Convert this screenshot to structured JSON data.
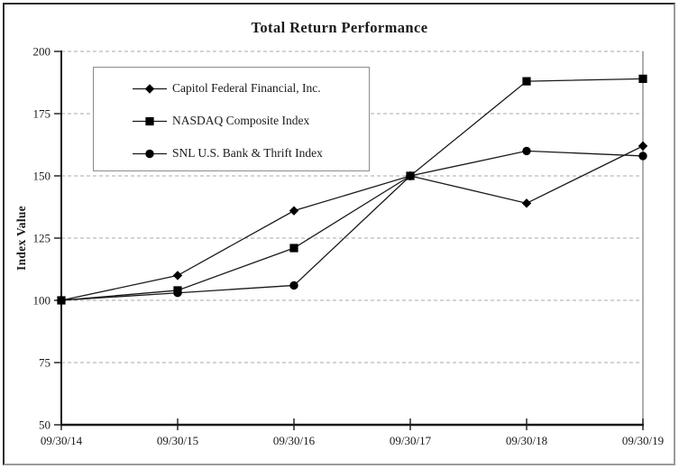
{
  "chart_data": {
    "type": "line",
    "title": "Total Return Performance",
    "ylabel": "Index Value",
    "xlabel": "",
    "categories": [
      "09/30/14",
      "09/30/15",
      "09/30/16",
      "09/30/17",
      "09/30/18",
      "09/30/19"
    ],
    "y_ticks": [
      50,
      75,
      100,
      125,
      150,
      175,
      200
    ],
    "ylim": [
      50,
      200
    ],
    "grid": "horizontal-dashed",
    "legend_position": "inside-top-left",
    "series": [
      {
        "name": "Capitol Federal Financial, Inc.",
        "marker": "diamond",
        "color": "#000000",
        "values": [
          100,
          110,
          136,
          150,
          139,
          162
        ]
      },
      {
        "name": "NASDAQ Composite Index",
        "marker": "square",
        "color": "#000000",
        "values": [
          100,
          104,
          121,
          150,
          188,
          189
        ]
      },
      {
        "name": "SNL U.S. Bank & Thrift Index",
        "marker": "circle",
        "color": "#000000",
        "values": [
          100,
          103,
          106,
          150,
          160,
          158
        ]
      }
    ],
    "colors": {
      "line": "#1a1a1a",
      "axis": "#1a1a1a",
      "grid": "#a8a8a8",
      "plot_border": "#8c8c8c",
      "legend_border": "#8c8c8c"
    }
  }
}
